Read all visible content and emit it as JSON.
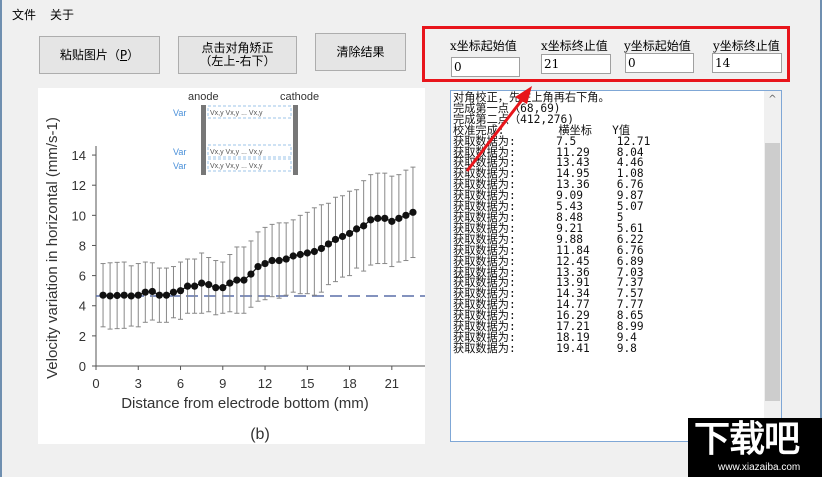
{
  "menu": {
    "items": [
      "文件",
      "关于"
    ]
  },
  "toolbar": {
    "paste_label_prefix": "粘贴图片（",
    "paste_hotkey": "P",
    "paste_label_suffix": "）",
    "corner_line1": "点击对角矫正",
    "corner_line2": "（左上-右下）",
    "clear_label": "清除结果"
  },
  "coords": {
    "x_start": {
      "label": "x坐标起始值",
      "value": "0"
    },
    "x_end": {
      "label": "x坐标终止值",
      "value": "21"
    },
    "y_start": {
      "label": "y坐标起始值",
      "value": "0"
    },
    "y_end": {
      "label": "y坐标终止值",
      "value": "14"
    }
  },
  "log": {
    "lines": [
      "对角校正，先左上角再右下角。",
      "完成第一点（68,69)",
      "完成第二点（412,276)",
      "校准完成:        横坐标   Y值",
      "获取数据为:      7.5      12.71",
      "获取数据为:      11.29    8.04",
      "获取数据为:      13.43    4.46",
      "获取数据为:      14.95    1.08",
      "获取数据为:      13.36    6.76",
      "获取数据为:      9.09     9.87",
      "获取数据为:      5.43     5.07",
      "获取数据为:      8.48     5",
      "获取数据为:      9.21     5.61",
      "获取数据为:      9.88     6.22",
      "获取数据为:      11.84    6.76",
      "获取数据为:      12.45    6.89",
      "获取数据为:      13.36    7.03",
      "获取数据为:      13.91    7.37",
      "获取数据为:      14.34    7.57",
      "获取数据为:      14.77    7.77",
      "获取数据为:      16.29    8.65",
      "获取数据为:      17.21    8.99",
      "获取数据为:      18.19    9.4",
      "获取数据为:      19.41    9.8"
    ],
    "scroll_up_glyph": "^"
  },
  "chart_data": {
    "type": "line",
    "title": "",
    "caption": "(b)",
    "xlabel": "Distance from electrode bottom (mm)",
    "ylabel": "Velocity variation in horizontal (mm/s-1)",
    "xticks": [
      "0",
      "3",
      "6",
      "9",
      "12",
      "15",
      "18",
      "21"
    ],
    "yticks": [
      "0",
      "2",
      "4",
      "6",
      "8",
      "10",
      "12",
      "14"
    ],
    "xlim": [
      0,
      23
    ],
    "ylim": [
      0,
      15
    ],
    "reference_line_y": 4.65,
    "inset": {
      "anode_label": "anode",
      "cathode_label": "cathode",
      "row_label": "Var"
    },
    "x": [
      0.5,
      1,
      1.5,
      2,
      2.5,
      3,
      3.5,
      4,
      4.5,
      5,
      5.5,
      6,
      6.5,
      7,
      7.5,
      8,
      8.5,
      9,
      9.5,
      10,
      10.5,
      11,
      11.5,
      12,
      12.5,
      13,
      13.5,
      14,
      14.5,
      15,
      15.5,
      16,
      16.5,
      17,
      17.5,
      18,
      18.5,
      19,
      19.5,
      20,
      20.5,
      21,
      21.5,
      22,
      22.5
    ],
    "values": [
      4.7,
      4.65,
      4.68,
      4.7,
      4.65,
      4.7,
      4.9,
      4.95,
      4.7,
      4.7,
      4.9,
      5.0,
      5.3,
      5.3,
      5.5,
      5.4,
      5.2,
      5.2,
      5.5,
      5.7,
      5.7,
      6.1,
      6.6,
      6.8,
      7.0,
      7.0,
      7.1,
      7.3,
      7.4,
      7.5,
      7.6,
      7.8,
      8.1,
      8.4,
      8.6,
      8.8,
      9.1,
      9.3,
      9.7,
      9.8,
      9.8,
      9.6,
      9.8,
      10.0,
      10.2
    ],
    "error": [
      2.1,
      2.2,
      2.2,
      2.2,
      2.0,
      2.1,
      2.0,
      1.9,
      1.8,
      1.8,
      1.7,
      1.9,
      1.8,
      1.8,
      2.0,
      1.8,
      1.8,
      1.7,
      1.9,
      2.2,
      2.2,
      2.2,
      2.3,
      2.4,
      2.4,
      2.5,
      2.4,
      2.4,
      2.6,
      2.7,
      2.9,
      2.9,
      2.7,
      2.8,
      2.7,
      2.8,
      2.6,
      3.0,
      3.0,
      3.0,
      3.0,
      3.0,
      2.9,
      3.0,
      3.0
    ]
  },
  "watermark": {
    "big": "下载吧",
    "url": "www.xiazaiba.com"
  }
}
